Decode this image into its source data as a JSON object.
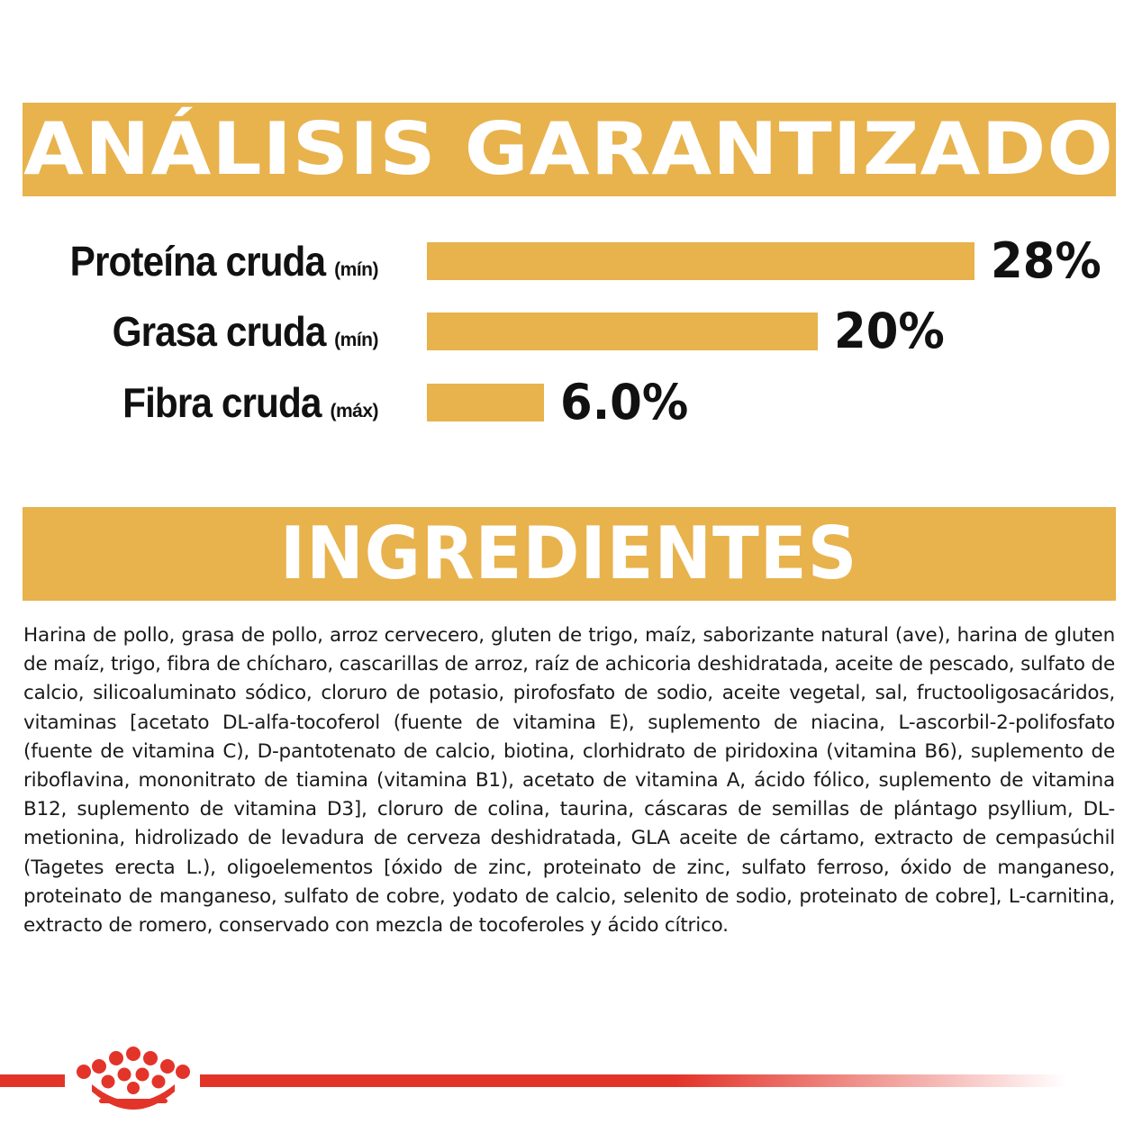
{
  "colors": {
    "banner": "#e8b24d",
    "bar": "#e8b24d",
    "text": "#111111",
    "brand_red": "#e3342a"
  },
  "analysis": {
    "title": "ANÁLISIS GARANTIZADO",
    "items": [
      {
        "name": "Proteína cruda",
        "qualifier": "(mín)",
        "value_label": "28%",
        "value": 28
      },
      {
        "name": "Grasa cruda",
        "qualifier": "(mín)",
        "value_label": "20%",
        "value": 20
      },
      {
        "name": "Fibra cruda",
        "qualifier": "(máx)",
        "value_label": "6.0%",
        "value": 6.0
      }
    ]
  },
  "ingredients": {
    "title": "INGREDIENTES",
    "text": "Harina de pollo, grasa de pollo, arroz cervecero, gluten de trigo, maíz, saborizante natural (ave), harina de gluten de maíz, trigo, fibra de chícharo, cascarillas de arroz, raíz de achicoria deshidratada, aceite de pescado, sulfato de calcio, silicoaluminato sódico, cloruro de potasio, pirofosfato de sodio, aceite vegetal, sal, fructooligosacáridos, vitaminas [acetato DL-alfa-tocoferol (fuente de vitamina E), suplemento de niacina, L-ascorbil-2-polifosfato (fuente de vitamina C), D-pantotenato de calcio, biotina, clorhidrato de piridoxina (vitamina B6), suplemento de riboflavina, mononitrato de tiamina (vitamina B1), acetato de vitamina A, ácido fólico, suplemento de vitamina B12, suplemento de vitamina D3], cloruro de colina, taurina, cáscaras de semillas de plántago psyllium, DL-metionina, hidrolizado de levadura de cerveza deshidratada, GLA aceite de cártamo, extracto de cempasúchil (Tagetes erecta L.), oligoelementos [óxido de zinc, proteinato de zinc, sulfato ferroso, óxido de manganeso, proteinato de manganeso, sulfato de cobre, yodato de calcio, selenito de sodio, proteinato de cobre], L-carnitina, extracto de romero, conservado con mezcla de tocoferoles y ácido cítrico."
  },
  "footer": {
    "logo_icon": "royal-canin-crown-icon"
  }
}
